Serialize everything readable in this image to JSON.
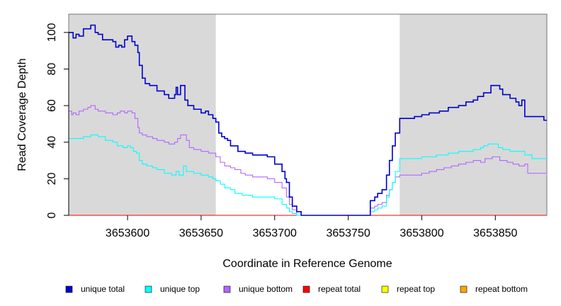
{
  "chart_data": {
    "type": "line",
    "xlabel": "Coordinate in Reference Genome",
    "ylabel": "Read Coverage Depth",
    "xlim": [
      3653560,
      3653885
    ],
    "ylim": [
      0,
      110
    ],
    "x_ticks": [
      3653600,
      3653650,
      3653700,
      3653750,
      3653800,
      3653850
    ],
    "x_tick_labels": [
      "3653600",
      "3653650",
      "3653700",
      "3653750",
      "3653800",
      "3653850"
    ],
    "y_ticks": [
      0,
      20,
      40,
      60,
      80,
      100
    ],
    "y_tick_labels": [
      "0",
      "20",
      "40",
      "60",
      "80",
      "100"
    ],
    "shaded_regions": [
      [
        3653560,
        3653660
      ],
      [
        3653785,
        3653885
      ]
    ],
    "legend_position": "bottom",
    "series": [
      {
        "name": "unique total",
        "color": "#0000CD",
        "points": [
          [
            3653560,
            100
          ],
          [
            3653563,
            97
          ],
          [
            3653565,
            99
          ],
          [
            3653567,
            98
          ],
          [
            3653570,
            102
          ],
          [
            3653575,
            104
          ],
          [
            3653578,
            100
          ],
          [
            3653580,
            99
          ],
          [
            3653583,
            96
          ],
          [
            3653590,
            95
          ],
          [
            3653592,
            92
          ],
          [
            3653594,
            93
          ],
          [
            3653596,
            92
          ],
          [
            3653598,
            96
          ],
          [
            3653600,
            98
          ],
          [
            3653603,
            95
          ],
          [
            3653605,
            93
          ],
          [
            3653607,
            89
          ],
          [
            3653608,
            82
          ],
          [
            3653610,
            75
          ],
          [
            3653612,
            72
          ],
          [
            3653615,
            71
          ],
          [
            3653620,
            68
          ],
          [
            3653622,
            68
          ],
          [
            3653625,
            66
          ],
          [
            3653628,
            64
          ],
          [
            3653632,
            66
          ],
          [
            3653633,
            70
          ],
          [
            3653634,
            66
          ],
          [
            3653636,
            71
          ],
          [
            3653639,
            63
          ],
          [
            3653641,
            60
          ],
          [
            3653645,
            58
          ],
          [
            3653650,
            56
          ],
          [
            3653653,
            57
          ],
          [
            3653655,
            55
          ],
          [
            3653658,
            53
          ],
          [
            3653660,
            51
          ],
          [
            3653662,
            45
          ],
          [
            3653664,
            43
          ],
          [
            3653666,
            42
          ],
          [
            3653668,
            41
          ],
          [
            3653670,
            38
          ],
          [
            3653675,
            35
          ],
          [
            3653680,
            34
          ],
          [
            3653685,
            33
          ],
          [
            3653690,
            33
          ],
          [
            3653695,
            32
          ],
          [
            3653700,
            28
          ],
          [
            3653705,
            24
          ],
          [
            3653707,
            20
          ],
          [
            3653708,
            18
          ],
          [
            3653710,
            10
          ],
          [
            3653712,
            5
          ],
          [
            3653715,
            2
          ],
          [
            3653718,
            0
          ],
          [
            3653760,
            0
          ],
          [
            3653765,
            8
          ],
          [
            3653768,
            10
          ],
          [
            3653770,
            12
          ],
          [
            3653773,
            14
          ],
          [
            3653776,
            22
          ],
          [
            3653778,
            30
          ],
          [
            3653780,
            38
          ],
          [
            3653782,
            45
          ],
          [
            3653785,
            53
          ],
          [
            3653795,
            54
          ],
          [
            3653800,
            55
          ],
          [
            3653805,
            56
          ],
          [
            3653812,
            57
          ],
          [
            3653818,
            59
          ],
          [
            3653825,
            60
          ],
          [
            3653830,
            62
          ],
          [
            3653835,
            63
          ],
          [
            3653838,
            65
          ],
          [
            3653842,
            67
          ],
          [
            3653847,
            71
          ],
          [
            3653853,
            69
          ],
          [
            3653855,
            66
          ],
          [
            3653860,
            64
          ],
          [
            3653864,
            62
          ],
          [
            3653866,
            60
          ],
          [
            3653868,
            63
          ],
          [
            3653870,
            54
          ],
          [
            3653880,
            54
          ],
          [
            3653883,
            52
          ],
          [
            3653885,
            52
          ]
        ]
      },
      {
        "name": "unique top",
        "color": "#00FFFF",
        "points": [
          [
            3653560,
            42
          ],
          [
            3653565,
            42
          ],
          [
            3653570,
            43
          ],
          [
            3653575,
            44
          ],
          [
            3653580,
            43
          ],
          [
            3653585,
            41
          ],
          [
            3653590,
            40
          ],
          [
            3653593,
            38
          ],
          [
            3653597,
            37
          ],
          [
            3653600,
            38
          ],
          [
            3653602,
            37
          ],
          [
            3653604,
            35
          ],
          [
            3653606,
            34
          ],
          [
            3653608,
            30
          ],
          [
            3653610,
            28
          ],
          [
            3653613,
            27
          ],
          [
            3653617,
            26
          ],
          [
            3653620,
            25
          ],
          [
            3653625,
            23
          ],
          [
            3653630,
            22
          ],
          [
            3653633,
            24
          ],
          [
            3653635,
            22
          ],
          [
            3653638,
            27
          ],
          [
            3653640,
            24
          ],
          [
            3653645,
            23
          ],
          [
            3653650,
            22
          ],
          [
            3653655,
            21
          ],
          [
            3653658,
            20
          ],
          [
            3653660,
            19
          ],
          [
            3653663,
            17
          ],
          [
            3653666,
            15
          ],
          [
            3653670,
            14
          ],
          [
            3653673,
            12
          ],
          [
            3653678,
            11
          ],
          [
            3653680,
            11
          ],
          [
            3653685,
            10
          ],
          [
            3653690,
            10
          ],
          [
            3653695,
            10
          ],
          [
            3653700,
            9
          ],
          [
            3653705,
            6
          ],
          [
            3653708,
            4
          ],
          [
            3653710,
            2
          ],
          [
            3653712,
            1
          ],
          [
            3653715,
            0
          ],
          [
            3653760,
            0
          ],
          [
            3653765,
            2
          ],
          [
            3653768,
            3
          ],
          [
            3653770,
            4
          ],
          [
            3653773,
            5
          ],
          [
            3653776,
            10
          ],
          [
            3653778,
            14
          ],
          [
            3653780,
            18
          ],
          [
            3653782,
            24
          ],
          [
            3653785,
            31
          ],
          [
            3653800,
            32
          ],
          [
            3653810,
            33
          ],
          [
            3653818,
            34
          ],
          [
            3653825,
            35
          ],
          [
            3653835,
            36
          ],
          [
            3653840,
            37
          ],
          [
            3653842,
            38
          ],
          [
            3653845,
            39
          ],
          [
            3653852,
            37
          ],
          [
            3653855,
            36
          ],
          [
            3653860,
            35
          ],
          [
            3653870,
            33
          ],
          [
            3653875,
            31
          ],
          [
            3653885,
            31
          ]
        ]
      },
      {
        "name": "unique bottom",
        "color": "#B266FF",
        "points": [
          [
            3653560,
            57
          ],
          [
            3653562,
            55
          ],
          [
            3653563,
            56
          ],
          [
            3653565,
            55
          ],
          [
            3653567,
            57
          ],
          [
            3653570,
            58
          ],
          [
            3653573,
            59
          ],
          [
            3653575,
            60
          ],
          [
            3653578,
            58
          ],
          [
            3653580,
            57
          ],
          [
            3653585,
            56
          ],
          [
            3653590,
            55
          ],
          [
            3653593,
            56
          ],
          [
            3653595,
            57
          ],
          [
            3653598,
            56
          ],
          [
            3653600,
            57
          ],
          [
            3653603,
            56
          ],
          [
            3653605,
            53
          ],
          [
            3653607,
            48
          ],
          [
            3653608,
            45
          ],
          [
            3653610,
            44
          ],
          [
            3653613,
            43
          ],
          [
            3653617,
            42
          ],
          [
            3653620,
            41
          ],
          [
            3653625,
            40
          ],
          [
            3653628,
            39
          ],
          [
            3653632,
            40
          ],
          [
            3653634,
            42
          ],
          [
            3653636,
            44
          ],
          [
            3653640,
            41
          ],
          [
            3653642,
            37
          ],
          [
            3653645,
            36
          ],
          [
            3653650,
            35
          ],
          [
            3653655,
            34
          ],
          [
            3653660,
            32
          ],
          [
            3653663,
            29
          ],
          [
            3653666,
            27
          ],
          [
            3653670,
            26
          ],
          [
            3653673,
            25
          ],
          [
            3653677,
            23
          ],
          [
            3653680,
            22
          ],
          [
            3653685,
            21
          ],
          [
            3653690,
            21
          ],
          [
            3653695,
            20
          ],
          [
            3653700,
            18
          ],
          [
            3653705,
            15
          ],
          [
            3653708,
            10
          ],
          [
            3653710,
            6
          ],
          [
            3653712,
            3
          ],
          [
            3653715,
            0
          ],
          [
            3653760,
            0
          ],
          [
            3653765,
            4
          ],
          [
            3653768,
            5
          ],
          [
            3653770,
            6
          ],
          [
            3653773,
            7
          ],
          [
            3653776,
            11
          ],
          [
            3653778,
            14
          ],
          [
            3653780,
            18
          ],
          [
            3653782,
            21
          ],
          [
            3653785,
            22
          ],
          [
            3653795,
            22
          ],
          [
            3653800,
            23
          ],
          [
            3653805,
            24
          ],
          [
            3653810,
            25
          ],
          [
            3653815,
            26
          ],
          [
            3653820,
            27
          ],
          [
            3653825,
            28
          ],
          [
            3653830,
            29
          ],
          [
            3653835,
            30
          ],
          [
            3653840,
            29
          ],
          [
            3653843,
            31
          ],
          [
            3653848,
            32
          ],
          [
            3653853,
            30
          ],
          [
            3653858,
            29
          ],
          [
            3653862,
            28
          ],
          [
            3653866,
            27
          ],
          [
            3653870,
            28
          ],
          [
            3653872,
            23
          ],
          [
            3653885,
            22
          ]
        ]
      },
      {
        "name": "repeat total",
        "color": "#FF0000",
        "points": [
          [
            3653560,
            0
          ],
          [
            3653885,
            0
          ]
        ]
      },
      {
        "name": "repeat top",
        "color": "#FFFF00",
        "points": [
          [
            3653560,
            0
          ],
          [
            3653885,
            0
          ]
        ]
      },
      {
        "name": "repeat bottom",
        "color": "#FFA500",
        "points": [
          [
            3653560,
            0
          ],
          [
            3653885,
            0
          ]
        ]
      }
    ]
  }
}
